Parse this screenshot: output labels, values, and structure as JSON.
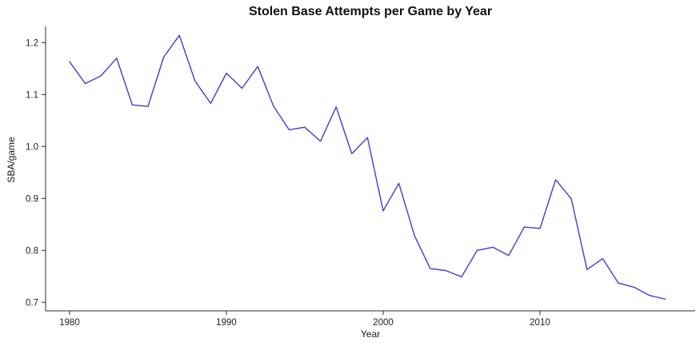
{
  "page": {
    "background": "#ffffff"
  },
  "chart_data": {
    "type": "line",
    "title": "Stolen Base Attempts per Game by Year",
    "xlabel": "Year",
    "ylabel": "SBA/game",
    "x": [
      1980,
      1981,
      1982,
      1983,
      1984,
      1985,
      1986,
      1987,
      1988,
      1989,
      1990,
      1991,
      1992,
      1993,
      1994,
      1995,
      1996,
      1997,
      1998,
      1999,
      2000,
      2001,
      2002,
      2003,
      2004,
      2005,
      2006,
      2007,
      2008,
      2009,
      2010,
      2011,
      2012,
      2013,
      2014,
      2015,
      2016,
      2017,
      2018
    ],
    "series": [
      {
        "name": "SBA per game",
        "color": "#3e3ed6",
        "values": [
          1.163,
          1.121,
          1.136,
          1.17,
          1.08,
          1.077,
          1.172,
          1.214,
          1.126,
          1.083,
          1.141,
          1.112,
          1.154,
          1.078,
          1.032,
          1.037,
          1.01,
          1.076,
          0.986,
          1.017,
          0.876,
          0.929,
          0.828,
          0.765,
          0.761,
          0.749,
          0.8,
          0.806,
          0.79,
          0.845,
          0.842,
          0.936,
          0.899,
          0.763,
          0.784,
          0.737,
          0.729,
          0.713,
          0.706
        ]
      }
    ],
    "xticks": [
      1980,
      1990,
      2000,
      2010
    ],
    "yticks": [
      0.7,
      0.8,
      0.9,
      1.0,
      1.1,
      1.2
    ],
    "xlim": [
      1978.47,
      2019.9
    ],
    "ylim": [
      0.6835,
      1.2312
    ],
    "grid": false,
    "legend": "none",
    "axis_color": "#2b2b2b",
    "text_color": "#222222"
  }
}
